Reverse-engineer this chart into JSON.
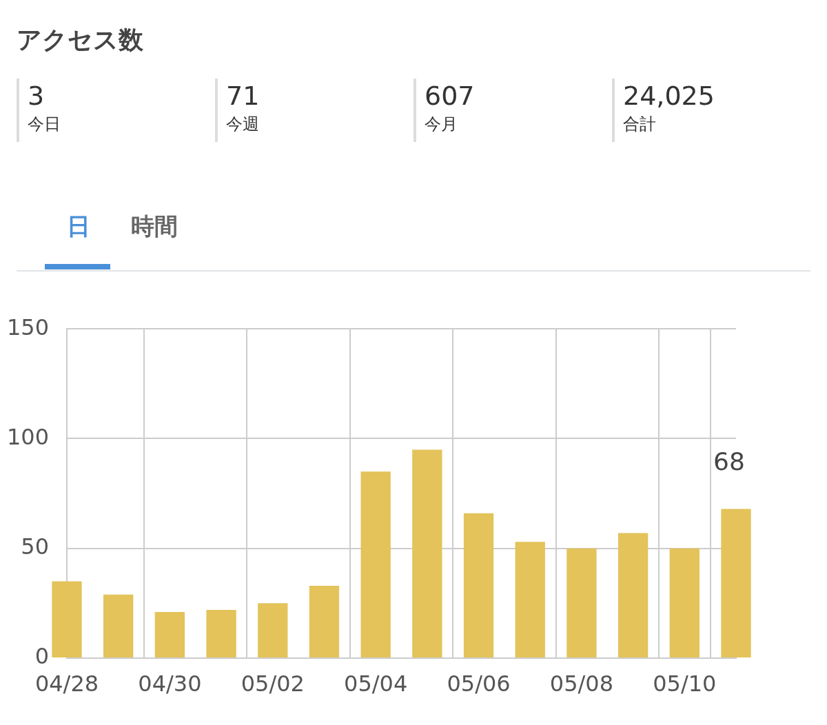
{
  "chart_data": [
    {
      "type": "other",
      "title": "アクセス数",
      "categories": [
        "今日",
        "今週",
        "今月",
        "合計"
      ],
      "values": [
        3,
        71,
        607,
        24025
      ],
      "value_labels": [
        "3",
        "71",
        "607",
        "24,025"
      ],
      "annotations": [
        "日",
        "時間"
      ]
    },
    {
      "type": "bar",
      "categories": [
        "04/28",
        null,
        "04/30",
        null,
        "05/02",
        null,
        "05/04",
        null,
        "05/06",
        null,
        "05/08",
        null,
        "05/10",
        null
      ],
      "values": [
        35,
        29,
        21,
        22,
        25,
        33,
        85,
        95,
        66,
        53,
        50,
        57,
        50,
        68
      ],
      "value_labels": [
        null,
        null,
        null,
        null,
        null,
        null,
        null,
        null,
        null,
        null,
        null,
        null,
        null,
        "68"
      ],
      "color": "#e3c35a",
      "ylim": [
        0,
        150
      ],
      "yticks": [
        0,
        50,
        100,
        150
      ],
      "grid": true,
      "legend": false
    }
  ]
}
